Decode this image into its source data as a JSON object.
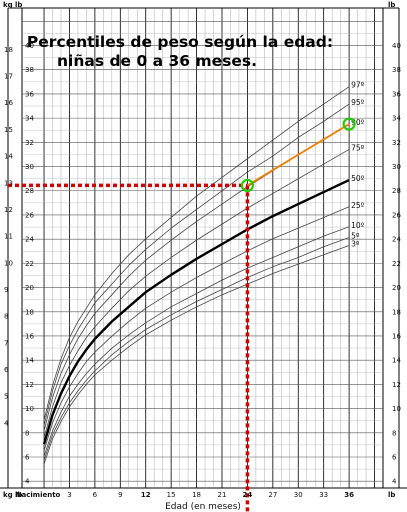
{
  "chart_data": {
    "type": "line",
    "title_lines": [
      "Percentiles de peso según la edad:",
      "niñas de 0 a 36 meses."
    ],
    "xlabel": "Edad (en meses)",
    "x_tick_labels": [
      {
        "month": 0,
        "label": "Nacimiento",
        "bold": true
      },
      {
        "month": 3,
        "label": "3"
      },
      {
        "month": 6,
        "label": "6"
      },
      {
        "month": 9,
        "label": "9"
      },
      {
        "month": 12,
        "label": "12",
        "bold": true
      },
      {
        "month": 15,
        "label": "15"
      },
      {
        "month": 18,
        "label": "18"
      },
      {
        "month": 21,
        "label": "21"
      },
      {
        "month": 24,
        "label": "24",
        "bold": true
      },
      {
        "month": 27,
        "label": "27"
      },
      {
        "month": 30,
        "label": "30"
      },
      {
        "month": 33,
        "label": "33"
      },
      {
        "month": 36,
        "label": "36",
        "bold": true
      }
    ],
    "xlim": [
      -2.6,
      40
    ],
    "kg_ticks": [
      4,
      5,
      6,
      7,
      8,
      9,
      10,
      11,
      12,
      13,
      14,
      15,
      16,
      17,
      18
    ],
    "lb_ticks": [
      4,
      6,
      8,
      10,
      12,
      14,
      16,
      18,
      20,
      22,
      24,
      26,
      28,
      30,
      32,
      34,
      36,
      38,
      40
    ],
    "ylim_kg": [
      1.56,
      19.1
    ],
    "left_units": [
      "kg",
      "lb"
    ],
    "right_unit": "lb",
    "bottom_left_units": [
      "kg",
      "lb"
    ],
    "bottom_right_unit": "lb",
    "x_months": [
      0,
      1,
      2,
      3,
      4,
      5,
      6,
      8,
      10,
      12,
      15,
      18,
      21,
      24,
      27,
      30,
      33,
      36
    ],
    "series": [
      {
        "name": "97º",
        "values": [
          4.1,
          5.4,
          6.4,
          7.2,
          7.8,
          8.3,
          8.8,
          9.6,
          10.3,
          10.9,
          11.7,
          12.5,
          13.2,
          13.9,
          14.6,
          15.3,
          15.95,
          16.6
        ]
      },
      {
        "name": "95º",
        "values": [
          3.9,
          5.2,
          6.2,
          6.9,
          7.5,
          8.0,
          8.5,
          9.2,
          9.9,
          10.5,
          11.3,
          12.0,
          12.7,
          13.4,
          14.0,
          14.7,
          15.3,
          15.95
        ]
      },
      {
        "name": "90º",
        "values": [
          3.7,
          4.95,
          5.85,
          6.55,
          7.15,
          7.65,
          8.1,
          8.8,
          9.5,
          10.1,
          10.85,
          11.55,
          12.2,
          12.85,
          13.45,
          14.05,
          14.6,
          15.2
        ]
      },
      {
        "name": "75º",
        "values": [
          3.45,
          4.6,
          5.5,
          6.15,
          6.7,
          7.2,
          7.6,
          8.3,
          8.95,
          9.5,
          10.2,
          10.85,
          11.45,
          12.05,
          12.6,
          13.15,
          13.7,
          14.25
        ]
      },
      {
        "name": "50º",
        "values": [
          3.2,
          4.3,
          5.1,
          5.75,
          6.3,
          6.75,
          7.15,
          7.8,
          8.35,
          8.9,
          9.55,
          10.15,
          10.7,
          11.25,
          11.75,
          12.2,
          12.65,
          13.1
        ]
      },
      {
        "name": "25º",
        "values": [
          2.95,
          4.0,
          4.75,
          5.35,
          5.85,
          6.3,
          6.65,
          7.25,
          7.8,
          8.3,
          8.9,
          9.45,
          9.95,
          10.45,
          10.9,
          11.3,
          11.7,
          12.1
        ]
      },
      {
        "name": "10º",
        "values": [
          2.75,
          3.7,
          4.4,
          5.0,
          5.45,
          5.85,
          6.2,
          6.8,
          7.3,
          7.75,
          8.35,
          8.85,
          9.35,
          9.8,
          10.2,
          10.6,
          11.0,
          11.35
        ]
      },
      {
        "name": "5º",
        "values": [
          2.6,
          3.55,
          4.2,
          4.75,
          5.2,
          5.6,
          5.95,
          6.55,
          7.05,
          7.5,
          8.05,
          8.55,
          9.0,
          9.45,
          9.85,
          10.2,
          10.6,
          10.95
        ]
      },
      {
        "name": "3º",
        "values": [
          2.45,
          3.4,
          4.05,
          4.6,
          5.05,
          5.45,
          5.8,
          6.35,
          6.85,
          7.3,
          7.85,
          8.35,
          8.8,
          9.2,
          9.6,
          9.95,
          10.3,
          10.65
        ]
      }
    ],
    "bold_series": "50º",
    "highlight": {
      "x": 24,
      "y": 12.9,
      "target_x": 36,
      "target_y": 15.2,
      "guide_color": "#d40000",
      "segment_color": "#f08000",
      "marker_color": "#22cc00"
    },
    "grid": true
  }
}
